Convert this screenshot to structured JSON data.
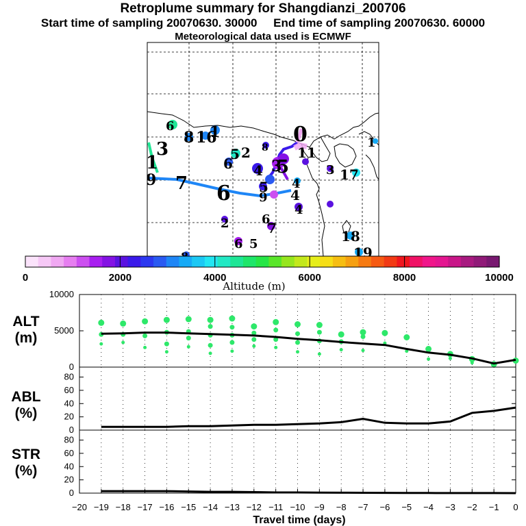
{
  "header": {
    "title": "Retroplume summary for Shangdianzi_200706",
    "start_label": "Start time of sampling 20070630. 30000",
    "end_label": "End time of sampling 20070630. 60000",
    "met_label": "Meteorological data used is ECMWF"
  },
  "colorbar": {
    "label": "Altitude (m)",
    "ticks": [
      "0",
      "2000",
      "4000",
      "6000",
      "8000",
      "10000"
    ],
    "colors": [
      "#fbe3fb",
      "#f6c8f6",
      "#f0a8f2",
      "#e67ef0",
      "#cc4ff0",
      "#a81ef0",
      "#8412e4",
      "#5a12e0",
      "#3a1aea",
      "#2c38f0",
      "#2a5af2",
      "#1e86f6",
      "#16aaf6",
      "#1cc8f4",
      "#22e6f2",
      "#22e8c4",
      "#1ee696",
      "#1ee66a",
      "#26e646",
      "#5ae62a",
      "#96e61e",
      "#c2e81c",
      "#e6ee1a",
      "#f6de16",
      "#f6be12",
      "#f6a012",
      "#f67a12",
      "#f65a12",
      "#f23a14",
      "#f0161e",
      "#f01266",
      "#f0168a",
      "#e41690",
      "#c81688",
      "#a81a80",
      "#901a78",
      "#781870"
    ]
  },
  "map": {
    "trajectory_labels": [
      {
        "t": "6",
        "c": "#22e696"
      },
      {
        "t": "8",
        "c": "#1e86f6"
      },
      {
        "t": "16",
        "c": "#1e86f6"
      },
      {
        "t": "1",
        "c": "#1e86f6"
      },
      {
        "t": "3",
        "c": "#22e6c4"
      },
      {
        "t": "5",
        "c": "#22e6c4"
      },
      {
        "t": "2",
        "c": "#2a5af2"
      },
      {
        "t": "6",
        "c": "#2a5af2"
      },
      {
        "t": "8",
        "c": "#3a1aea"
      },
      {
        "t": "0",
        "c": "#cc4ff0"
      },
      {
        "t": "11",
        "c": "#a81ef0"
      },
      {
        "t": "1",
        "c": "#16aaf6"
      },
      {
        "t": "9",
        "c": "#22e6c4"
      },
      {
        "t": "1",
        "c": "#22e6c4"
      },
      {
        "t": "7",
        "c": "#1e86f6"
      },
      {
        "t": "6",
        "c": "#2a5af2"
      },
      {
        "t": "4",
        "c": "#5a12e0"
      },
      {
        "t": "3",
        "c": "#8412e4"
      },
      {
        "t": "5",
        "c": "#a81ef0"
      },
      {
        "t": "3",
        "c": "#5a12e0"
      },
      {
        "t": "17",
        "c": "#16aaf6"
      },
      {
        "t": "4",
        "c": "#2a5af2"
      },
      {
        "t": "4",
        "c": "#5a12e0"
      },
      {
        "t": "5",
        "c": "#5a12e0"
      },
      {
        "t": "9",
        "c": "#a81ef0"
      },
      {
        "t": "4",
        "c": "#5a12e0"
      },
      {
        "t": "2",
        "c": "#5a12e0"
      },
      {
        "t": "6",
        "c": "#3a1aea"
      },
      {
        "t": "7",
        "c": "#8412e4"
      },
      {
        "t": "6",
        "c": "#a81ef0"
      },
      {
        "t": "5",
        "c": "#8412e4"
      },
      {
        "t": "18",
        "c": "#16aaf6"
      },
      {
        "t": "19",
        "c": "#16aaf6"
      },
      {
        "t": "8",
        "c": "#2a5af2"
      }
    ]
  },
  "panels": {
    "alt": {
      "label_line1": "ALT",
      "label_line2": "(m)",
      "yticks": [
        "0",
        "5000",
        "10000"
      ]
    },
    "abl": {
      "label_line1": "ABL",
      "label_line2": "(%)",
      "yticks": [
        "0",
        "20",
        "40",
        "60",
        "80"
      ]
    },
    "str": {
      "label_line1": "STR",
      "label_line2": "(%)",
      "yticks": [
        "0",
        "20",
        "40",
        "60",
        "80"
      ]
    }
  },
  "xaxis": {
    "label": "Travel time (days)"
  },
  "chart_data": [
    {
      "type": "line",
      "title": "ALT (m)",
      "ylabel": "ALT (m)",
      "xlabel": "Travel time (days)",
      "xlim": [
        -20,
        0
      ],
      "ylim": [
        0,
        10000
      ],
      "x": [
        -19,
        -18,
        -17,
        -16,
        -15,
        -14,
        -13,
        -12,
        -11,
        -10,
        -9,
        -8,
        -7,
        -6,
        -5,
        -4,
        -3,
        -2,
        -1,
        0
      ],
      "series": [
        {
          "name": "mean altitude",
          "values": [
            4600,
            4650,
            4750,
            4750,
            4650,
            4550,
            4450,
            4350,
            4150,
            3900,
            3700,
            3450,
            3250,
            3050,
            2500,
            2000,
            1700,
            1200,
            500,
            1000
          ]
        }
      ],
      "scatter_clusters": [
        {
          "x": -19,
          "values": [
            6100,
            4500,
            3200
          ]
        },
        {
          "x": -18,
          "values": [
            6000,
            4500,
            3400
          ]
        },
        {
          "x": -17,
          "values": [
            6300,
            4300,
            2700
          ]
        },
        {
          "x": -16,
          "values": [
            6500,
            4800,
            3200,
            2100
          ]
        },
        {
          "x": -15,
          "values": [
            6600,
            4900,
            4000,
            2800
          ]
        },
        {
          "x": -14,
          "values": [
            6500,
            5600,
            4400,
            3000,
            1900
          ]
        },
        {
          "x": -13,
          "values": [
            6700,
            5500,
            4400,
            3400,
            2200
          ]
        },
        {
          "x": -12,
          "values": [
            5600,
            4700,
            3800,
            2900
          ]
        },
        {
          "x": -11,
          "values": [
            6200,
            5100,
            3800,
            2700
          ]
        },
        {
          "x": -10,
          "values": [
            5900,
            4600,
            3400,
            2100
          ]
        },
        {
          "x": -9,
          "values": [
            5800,
            4800,
            3600,
            1800
          ]
        },
        {
          "x": -8,
          "values": [
            4500,
            3500,
            2400
          ]
        },
        {
          "x": -7,
          "values": [
            4800,
            4200,
            2300
          ]
        },
        {
          "x": -6,
          "values": [
            4700,
            3300
          ]
        },
        {
          "x": -5,
          "values": [
            4100,
            2200
          ]
        },
        {
          "x": -4,
          "values": [
            2500,
            1100
          ]
        },
        {
          "x": -3,
          "values": [
            1800,
            1200
          ]
        },
        {
          "x": -2,
          "values": [
            1100,
            600
          ]
        },
        {
          "x": -1,
          "values": [
            400
          ]
        },
        {
          "x": 0,
          "values": [
            900
          ]
        }
      ],
      "scatter_color": "#2ee86a"
    },
    {
      "type": "line",
      "title": "ABL (%)",
      "ylabel": "ABL (%)",
      "xlim": [
        -20,
        0
      ],
      "ylim": [
        0,
        95
      ],
      "x": [
        -19,
        -18,
        -17,
        -16,
        -15,
        -14,
        -13,
        -12,
        -11,
        -10,
        -9,
        -8,
        -7,
        -6,
        -5,
        -4,
        -3,
        -2,
        -1,
        0
      ],
      "series": [
        {
          "name": "ABL",
          "values": [
            5,
            5,
            5,
            5,
            6,
            6,
            7,
            8,
            8,
            9,
            10,
            12,
            17,
            11,
            10,
            10,
            13,
            26,
            29,
            34
          ]
        }
      ]
    },
    {
      "type": "line",
      "title": "STR (%)",
      "ylabel": "STR (%)",
      "xlim": [
        -20,
        0
      ],
      "ylim": [
        0,
        95
      ],
      "x": [
        -19,
        -18,
        -17,
        -16,
        -15,
        -14,
        -13,
        -12,
        -11,
        -10,
        -9,
        -8,
        -7,
        -6,
        -5,
        -4,
        -3,
        -2,
        -1,
        0
      ],
      "series": [
        {
          "name": "STR",
          "values": [
            3,
            3,
            3,
            3,
            2.5,
            2,
            2,
            1.5,
            1,
            1,
            0.8,
            0.6,
            0.5,
            0.4,
            0.3,
            0.2,
            0.1,
            0.1,
            0.1,
            0
          ]
        }
      ]
    }
  ]
}
